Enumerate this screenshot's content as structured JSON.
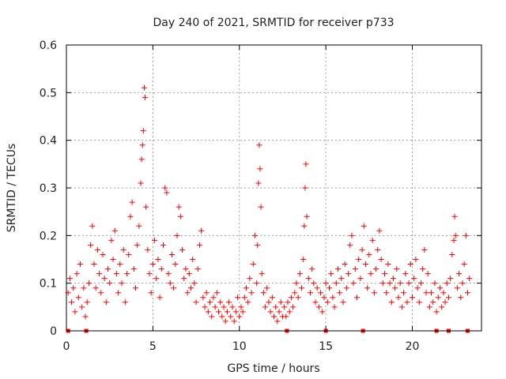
{
  "chart_data": {
    "type": "scatter",
    "title": "Day 240 of 2021, SRMTID for receiver p733",
    "xlabel": "GPS time / hours",
    "ylabel": "SRMTID / TECUs",
    "xlim": [
      0,
      24
    ],
    "ylim": [
      0,
      0.6
    ],
    "xticks": [
      0,
      5,
      10,
      15,
      20
    ],
    "xtick_labels": [
      "0",
      "5",
      "10",
      "15",
      "20"
    ],
    "yticks": [
      0,
      0.1,
      0.2,
      0.3,
      0.4,
      0.5,
      0.6
    ],
    "ytick_labels": [
      "0",
      "0.1",
      "0.2",
      "0.3",
      "0.4",
      "0.5",
      "0.6"
    ],
    "grid": true,
    "marker": "+",
    "color": "#ff0000",
    "series": [
      {
        "name": "SRMTID",
        "points": [
          [
            0.1,
            0.08
          ],
          [
            0.2,
            0.11
          ],
          [
            0.3,
            0.06
          ],
          [
            0.4,
            0.09
          ],
          [
            0.5,
            0.04
          ],
          [
            0.6,
            0.12
          ],
          [
            0.7,
            0.07
          ],
          [
            0.8,
            0.14
          ],
          [
            0.9,
            0.05
          ],
          [
            1.0,
            0.09
          ],
          [
            1.1,
            0.03
          ],
          [
            1.2,
            0.06
          ],
          [
            1.3,
            0.1
          ],
          [
            1.4,
            0.18
          ],
          [
            1.5,
            0.22
          ],
          [
            1.6,
            0.14
          ],
          [
            1.7,
            0.09
          ],
          [
            1.8,
            0.17
          ],
          [
            1.9,
            0.12
          ],
          [
            2.0,
            0.08
          ],
          [
            2.1,
            0.16
          ],
          [
            2.2,
            0.11
          ],
          [
            2.3,
            0.06
          ],
          [
            2.4,
            0.13
          ],
          [
            2.5,
            0.1
          ],
          [
            2.6,
            0.19
          ],
          [
            2.7,
            0.15
          ],
          [
            2.8,
            0.21
          ],
          [
            2.9,
            0.12
          ],
          [
            3.0,
            0.08
          ],
          [
            3.1,
            0.14
          ],
          [
            3.2,
            0.1
          ],
          [
            3.3,
            0.17
          ],
          [
            3.4,
            0.06
          ],
          [
            3.5,
            0.12
          ],
          [
            3.6,
            0.16
          ],
          [
            3.7,
            0.24
          ],
          [
            3.8,
            0.27
          ],
          [
            3.9,
            0.13
          ],
          [
            4.0,
            0.09
          ],
          [
            4.1,
            0.18
          ],
          [
            4.2,
            0.22
          ],
          [
            4.3,
            0.31
          ],
          [
            4.35,
            0.36
          ],
          [
            4.4,
            0.39
          ],
          [
            4.45,
            0.42
          ],
          [
            4.5,
            0.51
          ],
          [
            4.55,
            0.49
          ],
          [
            4.6,
            0.26
          ],
          [
            4.7,
            0.17
          ],
          [
            4.8,
            0.12
          ],
          [
            4.9,
            0.08
          ],
          [
            5.0,
            0.14
          ],
          [
            5.1,
            0.19
          ],
          [
            5.2,
            0.11
          ],
          [
            5.3,
            0.15
          ],
          [
            5.4,
            0.07
          ],
          [
            5.5,
            0.13
          ],
          [
            5.6,
            0.18
          ],
          [
            5.7,
            0.3
          ],
          [
            5.8,
            0.29
          ],
          [
            5.9,
            0.12
          ],
          [
            6.0,
            0.1
          ],
          [
            6.1,
            0.16
          ],
          [
            6.2,
            0.09
          ],
          [
            6.3,
            0.14
          ],
          [
            6.4,
            0.2
          ],
          [
            6.5,
            0.26
          ],
          [
            6.6,
            0.24
          ],
          [
            6.7,
            0.17
          ],
          [
            6.8,
            0.11
          ],
          [
            6.9,
            0.13
          ],
          [
            7.0,
            0.08
          ],
          [
            7.1,
            0.12
          ],
          [
            7.2,
            0.09
          ],
          [
            7.3,
            0.15
          ],
          [
            7.4,
            0.1
          ],
          [
            7.5,
            0.06
          ],
          [
            7.6,
            0.13
          ],
          [
            7.7,
            0.18
          ],
          [
            7.8,
            0.21
          ],
          [
            7.9,
            0.07
          ],
          [
            8.0,
            0.05
          ],
          [
            8.1,
            0.08
          ],
          [
            8.2,
            0.04
          ],
          [
            8.3,
            0.06
          ],
          [
            8.4,
            0.03
          ],
          [
            8.5,
            0.07
          ],
          [
            8.6,
            0.05
          ],
          [
            8.7,
            0.08
          ],
          [
            8.8,
            0.04
          ],
          [
            8.9,
            0.06
          ],
          [
            9.0,
            0.03
          ],
          [
            9.1,
            0.05
          ],
          [
            9.2,
            0.02
          ],
          [
            9.3,
            0.04
          ],
          [
            9.4,
            0.06
          ],
          [
            9.5,
            0.03
          ],
          [
            9.6,
            0.05
          ],
          [
            9.7,
            0.02
          ],
          [
            9.8,
            0.04
          ],
          [
            9.9,
            0.07
          ],
          [
            10.0,
            0.03
          ],
          [
            10.1,
            0.05
          ],
          [
            10.2,
            0.04
          ],
          [
            10.3,
            0.07
          ],
          [
            10.4,
            0.09
          ],
          [
            10.5,
            0.06
          ],
          [
            10.6,
            0.11
          ],
          [
            10.7,
            0.08
          ],
          [
            10.8,
            0.14
          ],
          [
            10.9,
            0.2
          ],
          [
            11.0,
            0.1
          ],
          [
            11.05,
            0.18
          ],
          [
            11.1,
            0.31
          ],
          [
            11.15,
            0.39
          ],
          [
            11.2,
            0.34
          ],
          [
            11.25,
            0.26
          ],
          [
            11.3,
            0.12
          ],
          [
            11.4,
            0.08
          ],
          [
            11.5,
            0.05
          ],
          [
            11.6,
            0.09
          ],
          [
            11.7,
            0.06
          ],
          [
            11.8,
            0.04
          ],
          [
            11.9,
            0.07
          ],
          [
            12.0,
            0.03
          ],
          [
            12.1,
            0.05
          ],
          [
            12.2,
            0.02
          ],
          [
            12.3,
            0.04
          ],
          [
            12.4,
            0.06
          ],
          [
            12.5,
            0.03
          ],
          [
            12.6,
            0.05
          ],
          [
            12.7,
            0.03
          ],
          [
            12.8,
            0.06
          ],
          [
            12.9,
            0.04
          ],
          [
            13.0,
            0.07
          ],
          [
            13.1,
            0.05
          ],
          [
            13.2,
            0.08
          ],
          [
            13.3,
            0.1
          ],
          [
            13.4,
            0.07
          ],
          [
            13.5,
            0.12
          ],
          [
            13.6,
            0.09
          ],
          [
            13.7,
            0.15
          ],
          [
            13.75,
            0.22
          ],
          [
            13.8,
            0.3
          ],
          [
            13.85,
            0.35
          ],
          [
            13.9,
            0.24
          ],
          [
            14.0,
            0.11
          ],
          [
            14.1,
            0.08
          ],
          [
            14.2,
            0.13
          ],
          [
            14.3,
            0.1
          ],
          [
            14.4,
            0.06
          ],
          [
            14.5,
            0.09
          ],
          [
            14.6,
            0.05
          ],
          [
            14.7,
            0.08
          ],
          [
            14.8,
            0.04
          ],
          [
            14.9,
            0.07
          ],
          [
            15.0,
            0.1
          ],
          [
            15.1,
            0.06
          ],
          [
            15.2,
            0.09
          ],
          [
            15.3,
            0.12
          ],
          [
            15.4,
            0.07
          ],
          [
            15.5,
            0.05
          ],
          [
            15.6,
            0.1
          ],
          [
            15.7,
            0.13
          ],
          [
            15.8,
            0.08
          ],
          [
            15.9,
            0.11
          ],
          [
            16.0,
            0.06
          ],
          [
            16.1,
            0.14
          ],
          [
            16.2,
            0.09
          ],
          [
            16.3,
            0.12
          ],
          [
            16.4,
            0.18
          ],
          [
            16.5,
            0.2
          ],
          [
            16.6,
            0.1
          ],
          [
            16.7,
            0.13
          ],
          [
            16.8,
            0.07
          ],
          [
            16.9,
            0.15
          ],
          [
            17.0,
            0.11
          ],
          [
            17.1,
            0.17
          ],
          [
            17.2,
            0.22
          ],
          [
            17.3,
            0.14
          ],
          [
            17.4,
            0.09
          ],
          [
            17.5,
            0.16
          ],
          [
            17.6,
            0.12
          ],
          [
            17.7,
            0.19
          ],
          [
            17.8,
            0.08
          ],
          [
            17.9,
            0.13
          ],
          [
            18.0,
            0.17
          ],
          [
            18.1,
            0.21
          ],
          [
            18.2,
            0.15
          ],
          [
            18.3,
            0.1
          ],
          [
            18.4,
            0.12
          ],
          [
            18.5,
            0.08
          ],
          [
            18.6,
            0.14
          ],
          [
            18.7,
            0.1
          ],
          [
            18.8,
            0.06
          ],
          [
            18.9,
            0.11
          ],
          [
            19.0,
            0.09
          ],
          [
            19.1,
            0.13
          ],
          [
            19.2,
            0.07
          ],
          [
            19.3,
            0.1
          ],
          [
            19.4,
            0.05
          ],
          [
            19.5,
            0.08
          ],
          [
            19.6,
            0.12
          ],
          [
            19.7,
            0.06
          ],
          [
            19.8,
            0.1
          ],
          [
            19.9,
            0.14
          ],
          [
            20.0,
            0.07
          ],
          [
            20.1,
            0.11
          ],
          [
            20.2,
            0.15
          ],
          [
            20.3,
            0.09
          ],
          [
            20.4,
            0.06
          ],
          [
            20.5,
            0.1
          ],
          [
            20.6,
            0.13
          ],
          [
            20.7,
            0.17
          ],
          [
            20.8,
            0.08
          ],
          [
            20.9,
            0.12
          ],
          [
            21.0,
            0.05
          ],
          [
            21.1,
            0.08
          ],
          [
            21.2,
            0.06
          ],
          [
            21.3,
            0.1
          ],
          [
            21.4,
            0.04
          ],
          [
            21.5,
            0.07
          ],
          [
            21.6,
            0.09
          ],
          [
            21.7,
            0.05
          ],
          [
            21.8,
            0.08
          ],
          [
            21.9,
            0.06
          ],
          [
            22.0,
            0.1
          ],
          [
            22.1,
            0.07
          ],
          [
            22.2,
            0.11
          ],
          [
            22.3,
            0.16
          ],
          [
            22.4,
            0.19
          ],
          [
            22.45,
            0.24
          ],
          [
            22.5,
            0.2
          ],
          [
            22.6,
            0.09
          ],
          [
            22.7,
            0.12
          ],
          [
            22.8,
            0.07
          ],
          [
            22.9,
            0.1
          ],
          [
            23.0,
            0.14
          ],
          [
            23.1,
            0.2
          ],
          [
            23.2,
            0.08
          ],
          [
            23.3,
            0.11
          ]
        ]
      }
    ],
    "gap_markers_x": [
      0.1,
      1.15,
      12.75,
      15.0,
      17.15,
      21.4,
      22.1,
      23.2
    ]
  }
}
